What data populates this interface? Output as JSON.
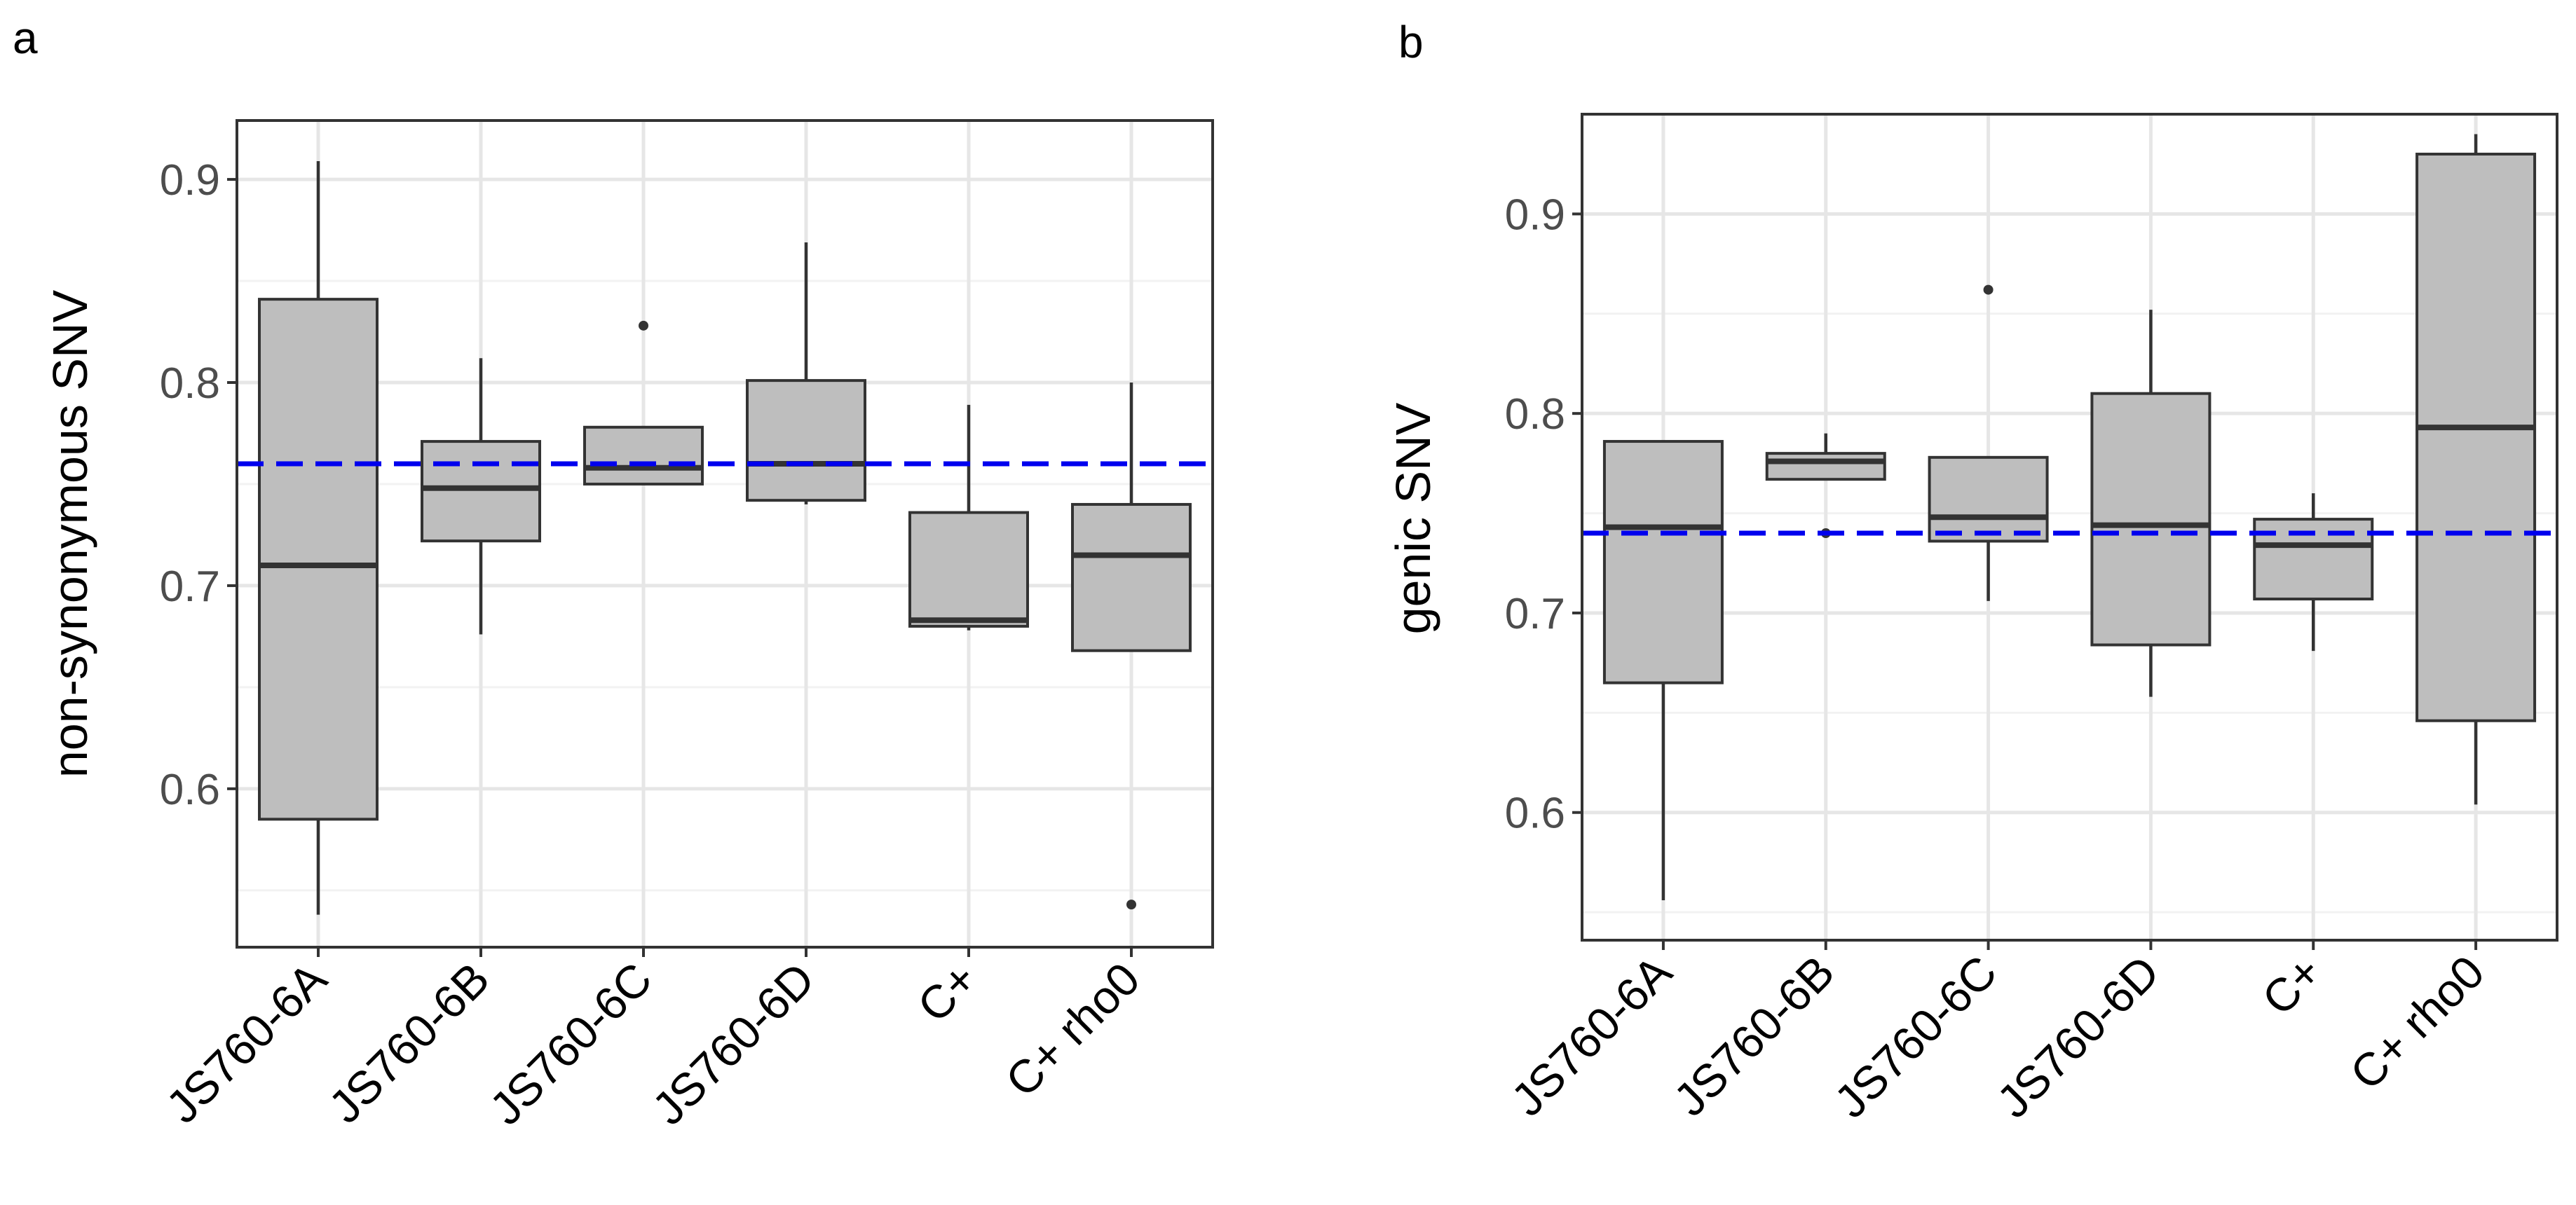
{
  "chart_data": [
    {
      "panel": "a",
      "type": "boxplot",
      "ylabel": "non-synonymous SNV",
      "xlabel": "",
      "categories": [
        "JS760-6A",
        "JS760-6B",
        "JS760-6C",
        "JS760-6D",
        "C+",
        "C+ rho0"
      ],
      "ylim": [
        0.522,
        0.929
      ],
      "yticks": [
        0.6,
        0.7,
        0.8,
        0.9
      ],
      "tick_labels": [
        "0.6",
        "0.7",
        "0.8",
        "0.9"
      ],
      "grid": true,
      "reference_line": {
        "y": 0.76,
        "color": "#0000ee",
        "style": "dashed"
      },
      "boxes": [
        {
          "category": "JS760-6A",
          "whisker_low": 0.538,
          "q1": 0.585,
          "median": 0.71,
          "q3": 0.841,
          "whisker_high": 0.909,
          "outliers": []
        },
        {
          "category": "JS760-6B",
          "whisker_low": 0.676,
          "q1": 0.722,
          "median": 0.748,
          "q3": 0.771,
          "whisker_high": 0.812,
          "outliers": []
        },
        {
          "category": "JS760-6C",
          "whisker_low": 0.75,
          "q1": 0.75,
          "median": 0.758,
          "q3": 0.778,
          "whisker_high": 0.778,
          "outliers": [
            0.828
          ]
        },
        {
          "category": "JS760-6D",
          "whisker_low": 0.74,
          "q1": 0.742,
          "median": 0.76,
          "q3": 0.801,
          "whisker_high": 0.869,
          "outliers": []
        },
        {
          "category": "C+",
          "whisker_low": 0.678,
          "q1": 0.68,
          "median": 0.683,
          "q3": 0.736,
          "whisker_high": 0.789,
          "outliers": []
        },
        {
          "category": "C+ rho0",
          "whisker_low": 0.668,
          "q1": 0.668,
          "median": 0.715,
          "q3": 0.74,
          "whisker_high": 0.8,
          "outliers": [
            0.543
          ]
        }
      ]
    },
    {
      "panel": "b",
      "type": "boxplot",
      "ylabel": "genic SNV",
      "xlabel": "",
      "categories": [
        "JS760-6A",
        "JS760-6B",
        "JS760-6C",
        "JS760-6D",
        "C+",
        "C+ rho0"
      ],
      "ylim": [
        0.536,
        0.95
      ],
      "yticks": [
        0.6,
        0.7,
        0.8,
        0.9
      ],
      "tick_labels": [
        "0.6",
        "0.7",
        "0.8",
        "0.9"
      ],
      "grid": true,
      "reference_line": {
        "y": 0.74,
        "color": "#0000ee",
        "style": "dashed"
      },
      "boxes": [
        {
          "category": "JS760-6A",
          "whisker_low": 0.556,
          "q1": 0.665,
          "median": 0.743,
          "q3": 0.786,
          "whisker_high": 0.786,
          "outliers": []
        },
        {
          "category": "JS760-6B",
          "whisker_low": 0.767,
          "q1": 0.767,
          "median": 0.776,
          "q3": 0.78,
          "whisker_high": 0.79,
          "outliers": [
            0.74
          ]
        },
        {
          "category": "JS760-6C",
          "whisker_low": 0.706,
          "q1": 0.736,
          "median": 0.748,
          "q3": 0.778,
          "whisker_high": 0.778,
          "outliers": [
            0.862
          ]
        },
        {
          "category": "JS760-6D",
          "whisker_low": 0.658,
          "q1": 0.684,
          "median": 0.744,
          "q3": 0.81,
          "whisker_high": 0.852,
          "outliers": []
        },
        {
          "category": "C+",
          "whisker_low": 0.681,
          "q1": 0.707,
          "median": 0.734,
          "q3": 0.747,
          "whisker_high": 0.76,
          "outliers": []
        },
        {
          "category": "C+ rho0",
          "whisker_low": 0.604,
          "q1": 0.646,
          "median": 0.793,
          "q3": 0.93,
          "whisker_high": 0.94,
          "outliers": []
        }
      ]
    }
  ]
}
